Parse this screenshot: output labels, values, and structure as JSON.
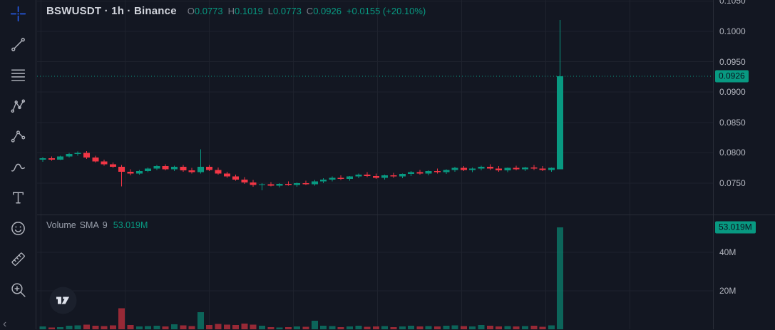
{
  "header": {
    "title": "BSWUSDT · 1h · Binance",
    "ohlc": [
      {
        "label": "O",
        "value": "0.0773"
      },
      {
        "label": "H",
        "value": "0.1019"
      },
      {
        "label": "L",
        "value": "0.0773"
      },
      {
        "label": "C",
        "value": "0.0926"
      }
    ],
    "change": "+0.0155 (+20.10%)"
  },
  "toolbar": {
    "tools": [
      "crosshair",
      "trend-line",
      "fib-retracement",
      "xabcd-pattern",
      "forecast",
      "brush",
      "text",
      "emoji",
      "measure",
      "zoom-in"
    ],
    "active_tool": "crosshair",
    "collapse_arrow": "‹"
  },
  "volume_indicator": {
    "label": "Volume",
    "sma": "SMA",
    "period": "9",
    "value": "53.019M"
  },
  "price_axis": {
    "labels": [
      {
        "text": "0.1050",
        "price": 0.105
      },
      {
        "text": "0.1000",
        "price": 0.1
      },
      {
        "text": "0.0950",
        "price": 0.095
      },
      {
        "text": "0.0900",
        "price": 0.09
      },
      {
        "text": "0.0850",
        "price": 0.085
      },
      {
        "text": "0.0800",
        "price": 0.08
      },
      {
        "text": "0.0750",
        "price": 0.075
      }
    ],
    "current_price_badge": {
      "text": "0.0926",
      "price": 0.0926
    },
    "volume_labels": [
      {
        "text": "40M",
        "value": 40
      },
      {
        "text": "20M",
        "value": 20
      }
    ],
    "volume_badge": {
      "text": "53.019M",
      "value": 53.019
    }
  },
  "colors": {
    "background": "#131722",
    "grid": "#1e222d",
    "up": "#089981",
    "down": "#f23645",
    "vol_up": "rgba(8,153,129,0.6)",
    "vol_down": "rgba(242,54,69,0.6)",
    "accent_blue": "#2962ff",
    "axis_text": "#b2b5be"
  },
  "chart_data": {
    "type": "candlestick+volume",
    "symbol": "BSWUSDT",
    "interval": "1h",
    "exchange": "Binance",
    "open": 0.0773,
    "high": 0.1019,
    "low": 0.0773,
    "close": 0.0926,
    "change_abs": "+0.0155",
    "change_pct": "+20.10%",
    "volume_sma_period": 9,
    "last_volume_label": "53.019M",
    "volume_unit": "M",
    "price_gridlines": [
      0.105,
      0.1,
      0.095,
      0.09,
      0.085,
      0.08,
      0.075
    ],
    "volume_gridlines": [
      20,
      40
    ],
    "candle_format": [
      "open",
      "high",
      "low",
      "close",
      "volume_millions"
    ],
    "candles": [
      [
        0.0789,
        0.0793,
        0.0785,
        0.0791,
        1.5
      ],
      [
        0.0791,
        0.0794,
        0.0787,
        0.0789,
        1.0
      ],
      [
        0.0789,
        0.0795,
        0.0788,
        0.0794,
        1.2
      ],
      [
        0.0794,
        0.08,
        0.0792,
        0.0798,
        1.8
      ],
      [
        0.0798,
        0.0802,
        0.0795,
        0.08,
        2.0
      ],
      [
        0.08,
        0.0803,
        0.079,
        0.0792,
        2.4
      ],
      [
        0.0792,
        0.0795,
        0.0784,
        0.0786,
        1.8
      ],
      [
        0.0786,
        0.0789,
        0.0779,
        0.0781,
        1.6
      ],
      [
        0.0781,
        0.0784,
        0.0775,
        0.0777,
        2.0
      ],
      [
        0.0777,
        0.078,
        0.0745,
        0.0769,
        11.0
      ],
      [
        0.0769,
        0.0773,
        0.0763,
        0.0766,
        2.2
      ],
      [
        0.0766,
        0.0772,
        0.0764,
        0.077,
        1.4
      ],
      [
        0.077,
        0.0776,
        0.0768,
        0.0774,
        1.6
      ],
      [
        0.0774,
        0.078,
        0.0772,
        0.0778,
        1.9
      ],
      [
        0.0778,
        0.0781,
        0.0771,
        0.0773,
        1.5
      ],
      [
        0.0773,
        0.0779,
        0.077,
        0.0777,
        2.6
      ],
      [
        0.0777,
        0.078,
        0.0769,
        0.0771,
        2.1
      ],
      [
        0.0771,
        0.0775,
        0.0766,
        0.0768,
        1.7
      ],
      [
        0.0768,
        0.0806,
        0.0766,
        0.0777,
        8.8
      ],
      [
        0.0777,
        0.078,
        0.077,
        0.0772,
        2.3
      ],
      [
        0.0772,
        0.0776,
        0.0764,
        0.0766,
        2.8
      ],
      [
        0.0766,
        0.0769,
        0.0759,
        0.0761,
        2.5
      ],
      [
        0.0761,
        0.0764,
        0.0754,
        0.0756,
        2.2
      ],
      [
        0.0756,
        0.076,
        0.0749,
        0.0751,
        2.9
      ],
      [
        0.0751,
        0.0755,
        0.0744,
        0.0747,
        2.4
      ],
      [
        0.0747,
        0.075,
        0.0738,
        0.0748,
        1.8
      ],
      [
        0.0748,
        0.0752,
        0.0745,
        0.0746,
        1.2
      ],
      [
        0.0746,
        0.075,
        0.0743,
        0.0749,
        1.0
      ],
      [
        0.0749,
        0.0753,
        0.0746,
        0.0747,
        1.1
      ],
      [
        0.0747,
        0.0751,
        0.0744,
        0.075,
        1.4
      ],
      [
        0.075,
        0.0754,
        0.0747,
        0.0748,
        1.3
      ],
      [
        0.0748,
        0.0755,
        0.0746,
        0.0753,
        4.5
      ],
      [
        0.0753,
        0.0758,
        0.075,
        0.0756,
        1.9
      ],
      [
        0.0756,
        0.0761,
        0.0753,
        0.0759,
        1.7
      ],
      [
        0.0759,
        0.0763,
        0.0755,
        0.0757,
        1.2
      ],
      [
        0.0757,
        0.0762,
        0.0754,
        0.0761,
        1.5
      ],
      [
        0.0761,
        0.0766,
        0.0758,
        0.0764,
        1.8
      ],
      [
        0.0764,
        0.0768,
        0.076,
        0.0762,
        1.3
      ],
      [
        0.0762,
        0.0766,
        0.0757,
        0.0759,
        1.4
      ],
      [
        0.0759,
        0.0764,
        0.0756,
        0.0763,
        1.6
      ],
      [
        0.0763,
        0.0767,
        0.0759,
        0.0761,
        1.2
      ],
      [
        0.0761,
        0.0766,
        0.0758,
        0.0765,
        1.5
      ],
      [
        0.0765,
        0.077,
        0.0762,
        0.0768,
        1.9
      ],
      [
        0.0768,
        0.0772,
        0.0764,
        0.0766,
        1.4
      ],
      [
        0.0766,
        0.0771,
        0.0763,
        0.077,
        1.7
      ],
      [
        0.077,
        0.0774,
        0.0766,
        0.0768,
        1.5
      ],
      [
        0.0768,
        0.0773,
        0.0765,
        0.0772,
        1.8
      ],
      [
        0.0772,
        0.0777,
        0.0769,
        0.0775,
        2.0
      ],
      [
        0.0775,
        0.0778,
        0.077,
        0.0772,
        1.6
      ],
      [
        0.0772,
        0.0776,
        0.0768,
        0.0774,
        1.4
      ],
      [
        0.0774,
        0.0779,
        0.0771,
        0.0777,
        2.2
      ],
      [
        0.0777,
        0.0781,
        0.0772,
        0.0774,
        1.9
      ],
      [
        0.0774,
        0.0778,
        0.0769,
        0.0771,
        1.5
      ],
      [
        0.0771,
        0.0776,
        0.0768,
        0.0775,
        1.7
      ],
      [
        0.0775,
        0.0779,
        0.0771,
        0.0773,
        1.4
      ],
      [
        0.0773,
        0.0777,
        0.077,
        0.0776,
        1.6
      ],
      [
        0.0776,
        0.078,
        0.0772,
        0.0774,
        1.8
      ],
      [
        0.0774,
        0.0778,
        0.077,
        0.0772,
        1.3
      ],
      [
        0.0772,
        0.0776,
        0.0769,
        0.0775,
        2.1
      ],
      [
        0.0773,
        0.1019,
        0.0773,
        0.0926,
        53.019
      ]
    ]
  }
}
